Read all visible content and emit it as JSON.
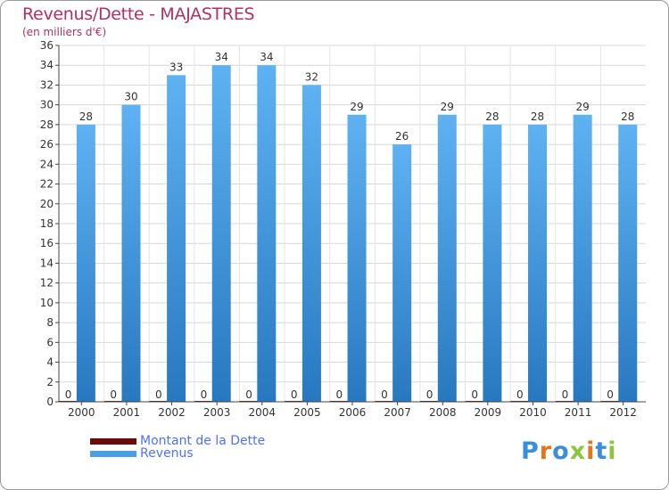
{
  "chart_data": {
    "type": "bar",
    "title": "Revenus/Dette - MAJASTRES",
    "subtitle": "(en milliers d'€)",
    "categories": [
      "2000",
      "2001",
      "2002",
      "2003",
      "2004",
      "2005",
      "2006",
      "2007",
      "2008",
      "2009",
      "2010",
      "2011",
      "2012"
    ],
    "series": [
      {
        "name": "Montant de la Dette",
        "color": "#6b0c0c",
        "values": [
          0,
          0,
          0,
          0,
          0,
          0,
          0,
          0,
          0,
          0,
          0,
          0,
          0
        ]
      },
      {
        "name": "Revenus",
        "color": "#4aa0e6",
        "values": [
          28,
          30,
          33,
          34,
          34,
          32,
          29,
          26,
          29,
          28,
          28,
          29,
          28
        ]
      }
    ],
    "ylim": [
      0,
      36
    ],
    "yticks": [
      0,
      2,
      4,
      6,
      8,
      10,
      12,
      14,
      16,
      18,
      20,
      22,
      24,
      26,
      28,
      30,
      32,
      34,
      36
    ],
    "grid": true,
    "legend": "bottom-left",
    "xlabel": "",
    "ylabel": ""
  },
  "logo": {
    "text": "Proxiti",
    "letters": [
      "P",
      "r",
      "o",
      "x",
      "i",
      "t",
      "i"
    ],
    "colors": [
      "#3a8fd8",
      "#e8731a",
      "#3a8fd8",
      "#8cc63f",
      "#e8731a",
      "#3a8fd8",
      "#8cc63f"
    ]
  }
}
